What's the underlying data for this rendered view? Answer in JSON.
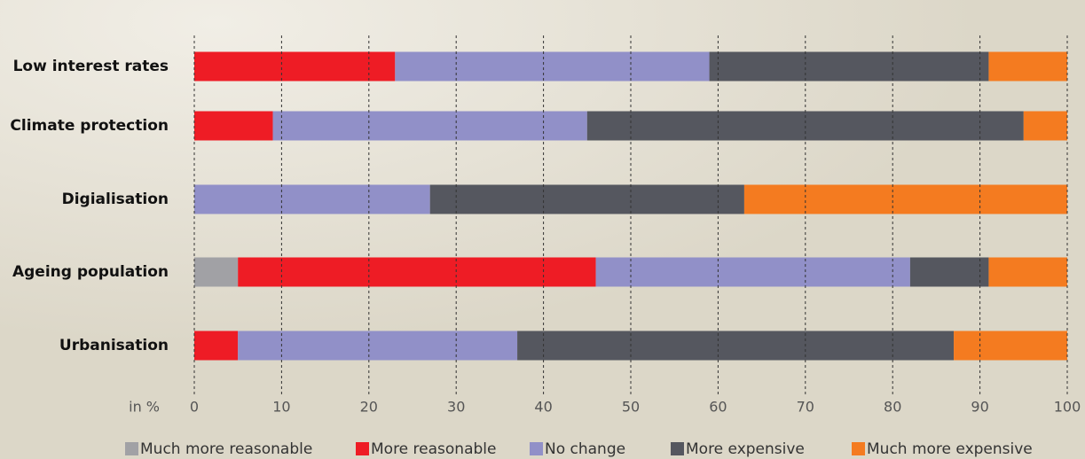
{
  "chart_data": {
    "type": "stacked_barh",
    "x_label": "in %",
    "categories": [
      "Low interest rates",
      "Climate protection",
      "Digialisation",
      "Ageing population",
      "Urbanisation"
    ],
    "series": [
      {
        "name": "Much more reasonable",
        "color": "#a1a1a5",
        "values": [
          0,
          0,
          0,
          5,
          0
        ]
      },
      {
        "name": "More reasonable",
        "color": "#ee1c25",
        "values": [
          23,
          9,
          0,
          41,
          5
        ]
      },
      {
        "name": "No change",
        "color": "#9190c8",
        "values": [
          36,
          36,
          27,
          36,
          32
        ]
      },
      {
        "name": "More expensive",
        "color": "#55575f",
        "values": [
          32,
          50,
          36,
          9,
          50
        ]
      },
      {
        "name": "Much more expensive",
        "color": "#f47b20",
        "values": [
          9,
          5,
          37,
          9,
          13
        ]
      }
    ],
    "xlim": [
      0,
      100
    ],
    "xticks": [
      0,
      10,
      20,
      30,
      40,
      50,
      60,
      70,
      80,
      90,
      100
    ],
    "grid": true,
    "legend": "bottom"
  }
}
